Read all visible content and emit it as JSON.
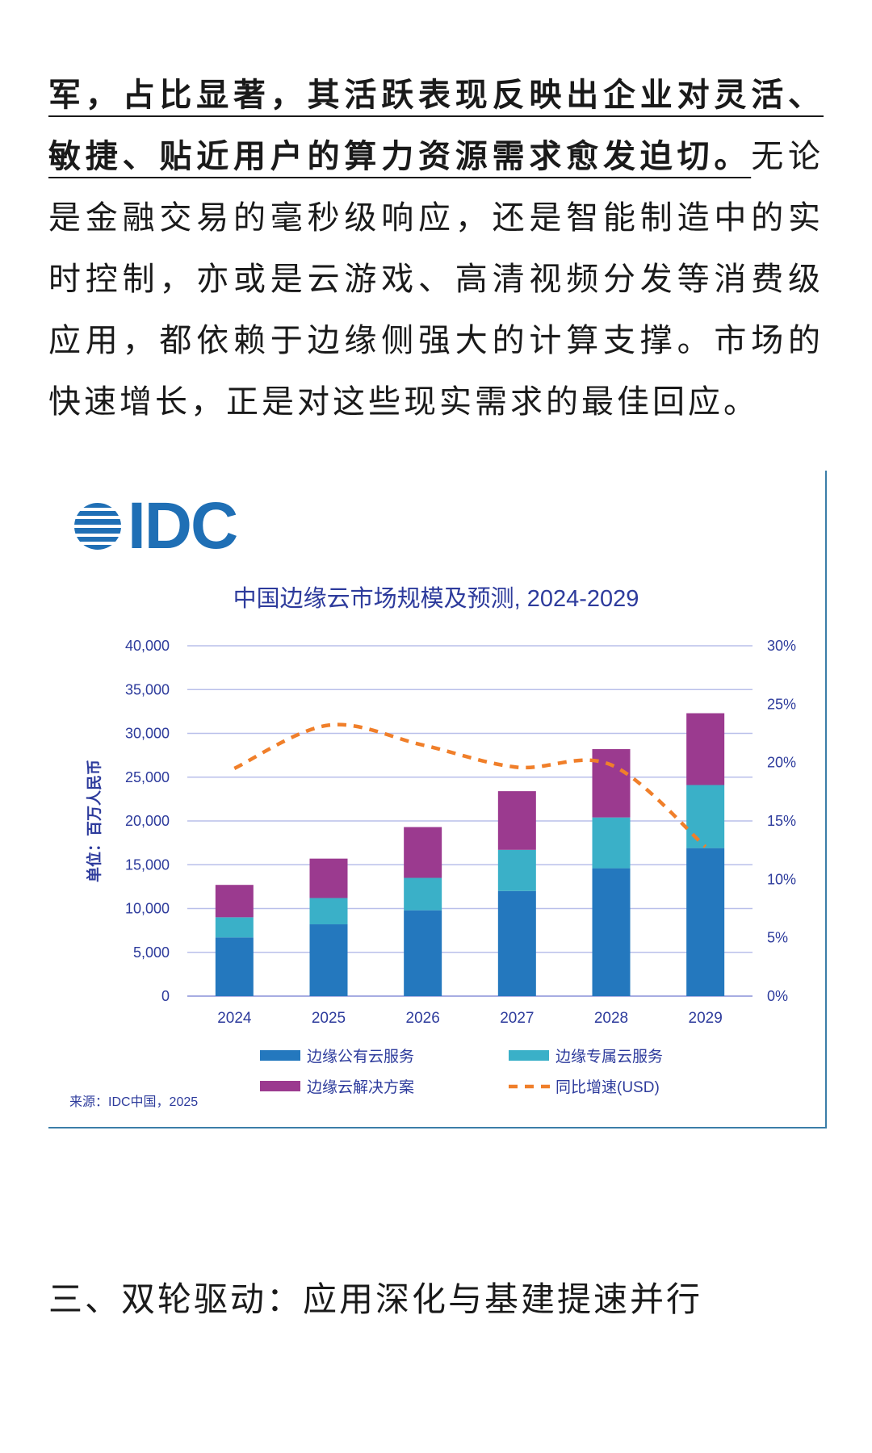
{
  "article": {
    "bold_text": "军，占比显著，其活跃表现反映出企业对灵活、敏捷、贴近用户的算力资源需求愈发迫切。",
    "normal_text": "无论是金融交易的毫秒级响应，还是智能制造中的实时控制，亦或是云游戏、高清视频分发等消费级应用，都依赖于边缘侧强大的计算支撑。市场的快速增长，正是对这些现实需求的最佳回应。"
  },
  "figure": {
    "logo_text": "IDC",
    "logo_icon": "idc-globe-icon",
    "source": "来源：IDC中国，2025"
  },
  "chart_data": {
    "type": "bar",
    "stacked": true,
    "title": "中国边缘云市场规模及预测, 2024-2029",
    "ylabel": "单位：百万人民币",
    "categories": [
      "2024",
      "2025",
      "2026",
      "2027",
      "2028",
      "2029"
    ],
    "ylim": [
      0,
      40000
    ],
    "yticks": [
      "0",
      "5,000",
      "10,000",
      "15,000",
      "20,000",
      "25,000",
      "30,000",
      "35,000",
      "40,000"
    ],
    "y2lim": [
      0,
      30
    ],
    "y2ticks": [
      "0%",
      "5%",
      "10%",
      "15%",
      "20%",
      "25%",
      "30%"
    ],
    "grid": true,
    "series": [
      {
        "name": "边缘公有云服务",
        "color": "#2478be",
        "values": [
          6700,
          8200,
          9800,
          12000,
          14600,
          16900
        ]
      },
      {
        "name": "边缘专属云服务",
        "color": "#3ab0c8",
        "values": [
          2300,
          3000,
          3700,
          4700,
          5800,
          7200
        ]
      },
      {
        "name": "边缘云解决方案",
        "color": "#9b3a8f",
        "values": [
          3700,
          4500,
          5800,
          6700,
          7800,
          8200
        ]
      }
    ],
    "line_series": {
      "name": "同比增速(USD)",
      "color": "#f07f2a",
      "axis": "right",
      "values": [
        19.5,
        23.2,
        21.5,
        19.6,
        19.8,
        12.8
      ]
    },
    "legend_position": "bottom"
  },
  "section": {
    "heading": "三、双轮驱动：应用深化与基建提速并行"
  }
}
